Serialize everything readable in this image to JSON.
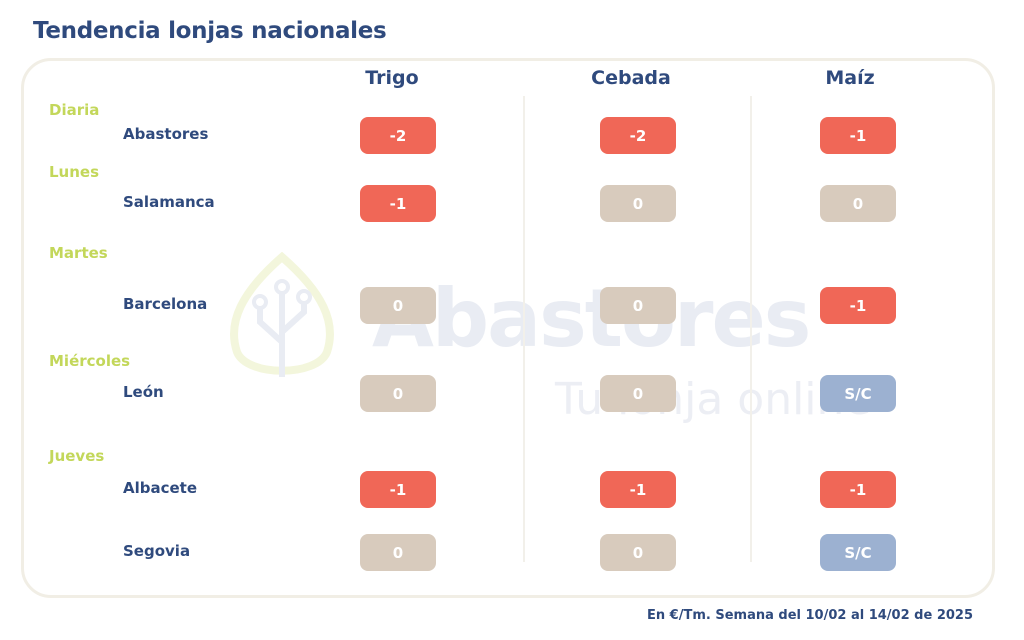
{
  "title": "Tendencia lonjas nacionales",
  "watermark": {
    "brand": "Abastores",
    "tagline": "Tu lonja online"
  },
  "columns": [
    "Trigo",
    "Cebada",
    "Maíz"
  ],
  "colors": {
    "down": "#f06757",
    "zero": "#d8cbbd",
    "sc": "#9cb1d1"
  },
  "days": [
    "Diaria",
    "Lunes",
    "Martes",
    "Miércoles",
    "Jueves"
  ],
  "rows": [
    {
      "market": "Abastores",
      "values": [
        "-2",
        "-2",
        "-1"
      ]
    },
    {
      "market": "Salamanca",
      "values": [
        "-1",
        "0",
        "0"
      ]
    },
    {
      "market": "Barcelona",
      "values": [
        "0",
        "0",
        "-1"
      ]
    },
    {
      "market": "León",
      "values": [
        "0",
        "0",
        "S/C"
      ]
    },
    {
      "market": "Albacete",
      "values": [
        "-1",
        "-1",
        "-1"
      ]
    },
    {
      "market": "Segovia",
      "values": [
        "0",
        "0",
        "S/C"
      ]
    }
  ],
  "footer": "En €/Tm. Semana del 10/02 al 14/02 de 2025"
}
